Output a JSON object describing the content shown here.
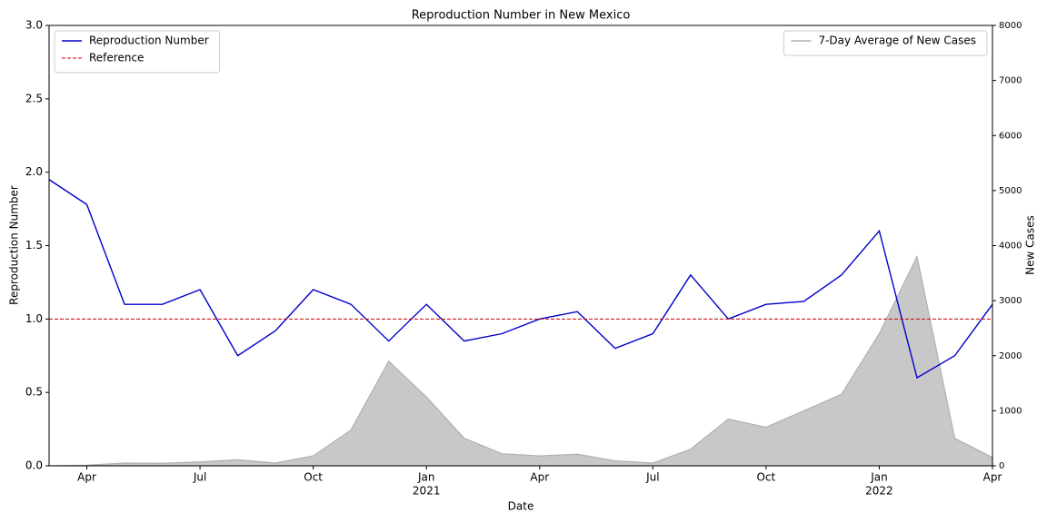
{
  "chart_data": {
    "type": "line",
    "title": "Reproduction Number in New Mexico",
    "x_label": "Date",
    "y_label": "Reproduction Number",
    "y2_label": "New Cases",
    "x": [
      "2020-03",
      "2020-04",
      "2020-05",
      "2020-06",
      "2020-07",
      "2020-08",
      "2020-09",
      "2020-10",
      "2020-11",
      "2020-12",
      "2021-01",
      "2021-02",
      "2021-03",
      "2021-04",
      "2021-05",
      "2021-06",
      "2021-07",
      "2021-08",
      "2021-09",
      "2021-10",
      "2021-11",
      "2021-12",
      "2022-01",
      "2022-02",
      "2022-03",
      "2022-04"
    ],
    "series": [
      {
        "name": "Reproduction Number",
        "color": "#0000cc",
        "type": "line",
        "legend": "upper left",
        "values": [
          1.95,
          1.78,
          1.1,
          1.1,
          1.2,
          0.75,
          0.92,
          1.2,
          1.1,
          0.85,
          1.1,
          0.85,
          0.9,
          1.0,
          1.05,
          0.8,
          0.9,
          1.3,
          1.0,
          1.1,
          1.12,
          1.3,
          1.6,
          0.6,
          0.75,
          1.1
        ]
      },
      {
        "name": "7-Day Average of New Cases",
        "color": "#b0b0b0",
        "type": "area",
        "axis": "y2",
        "legend": "upper right",
        "values": [
          0,
          10,
          50,
          45,
          70,
          110,
          50,
          180,
          650,
          1900,
          1250,
          500,
          220,
          180,
          210,
          90,
          50,
          300,
          850,
          700,
          1000,
          1300,
          2400,
          3800,
          500,
          150
        ]
      }
    ],
    "hlines": [
      {
        "name": "Reference",
        "value": 1,
        "color": "#cc0000",
        "legend": "upper left"
      }
    ],
    "xlim": [
      "2020-03",
      "2022-04"
    ],
    "xticks": [
      {
        "value": "2020-04",
        "label": "Apr"
      },
      {
        "value": "2020-07",
        "label": "Jul"
      },
      {
        "value": "2020-10",
        "label": "Oct"
      },
      {
        "value": "2021-01",
        "label": "Jan",
        "year": "2021"
      },
      {
        "value": "2021-04",
        "label": "Apr"
      },
      {
        "value": "2021-07",
        "label": "Jul"
      },
      {
        "value": "2021-10",
        "label": "Oct"
      },
      {
        "value": "2022-01",
        "label": "Jan",
        "year": "2022"
      },
      {
        "value": "2022-04",
        "label": "Apr"
      }
    ],
    "ylim": [
      0,
      3
    ],
    "yticks": [
      {
        "value": 0,
        "label": "0.0"
      },
      0.5,
      {
        "value": 1,
        "label": "1.0"
      },
      1.5,
      {
        "value": 2,
        "label": "2.0"
      },
      2.5,
      {
        "value": 3,
        "label": "3.0"
      }
    ],
    "y2lim": [
      0,
      8000
    ],
    "y2ticks": [
      0,
      1000,
      2000,
      3000,
      4000,
      5000,
      6000,
      7000,
      8000
    ]
  }
}
